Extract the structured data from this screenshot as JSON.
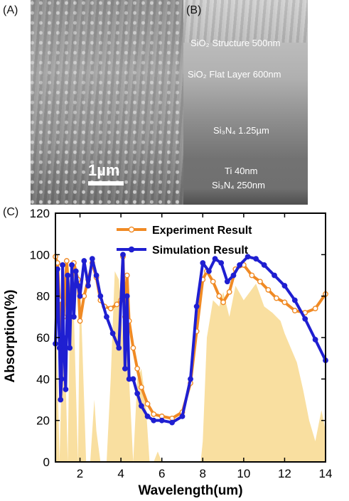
{
  "panels": {
    "a_label": "(A)",
    "b_label": "(B)",
    "c_label": "(C)",
    "scale_label": "1µm",
    "layers": {
      "sio2_structure": "SiO₂ Structure 500nm",
      "sio2_flat": "SiO₂ Flat Layer 600nm",
      "si3n4_thick": "Si₃N₄ 1.25µm",
      "ti": "Ti 40nm",
      "si3n4_thin": "Si₃N₄ 250nm"
    }
  },
  "chart_data": {
    "type": "line",
    "xlabel": "Wavelength(um)",
    "ylabel": "Absorption(%)",
    "xlim": [
      0.8,
      14
    ],
    "ylim": [
      0,
      120
    ],
    "xticks": [
      2,
      4,
      6,
      8,
      10,
      12,
      14
    ],
    "yticks": [
      0,
      20,
      40,
      60,
      80,
      100,
      120
    ],
    "legend_position": "top-center",
    "grid": false,
    "colors": {
      "experiment": "#f08a24",
      "simulation": "#1f1fd1",
      "background_fill": "#f9dfa0"
    },
    "series": [
      {
        "name": "Experiment Result",
        "marker": "open-circle",
        "x": [
          0.8,
          0.9,
          1.0,
          1.1,
          1.2,
          1.35,
          1.5,
          1.7,
          1.9,
          2.0,
          2.2,
          2.4,
          2.6,
          2.8,
          3.0,
          3.2,
          3.5,
          3.8,
          4.0,
          4.1,
          4.2,
          4.3,
          4.4,
          4.6,
          4.8,
          5.0,
          5.3,
          5.6,
          6.0,
          6.5,
          7.0,
          7.4,
          7.7,
          8.0,
          8.2,
          8.5,
          8.8,
          9.0,
          9.3,
          9.6,
          10.0,
          10.4,
          10.8,
          11.2,
          11.6,
          12.0,
          12.5,
          13.0,
          13.5,
          14.0
        ],
        "y": [
          99,
          96,
          78,
          62,
          70,
          97,
          75,
          96,
          88,
          68,
          80,
          88,
          96,
          89,
          78,
          75,
          74,
          76,
          78,
          99,
          70,
          90,
          68,
          55,
          45,
          36,
          28,
          23,
          22,
          21,
          24,
          38,
          63,
          88,
          92,
          87,
          80,
          77,
          82,
          93,
          95,
          90,
          87,
          83,
          79,
          77,
          73,
          72,
          74,
          81
        ]
      },
      {
        "name": "Simulation Result",
        "marker": "filled-circle",
        "x": [
          0.8,
          0.9,
          1.0,
          1.05,
          1.1,
          1.15,
          1.2,
          1.3,
          1.4,
          1.5,
          1.6,
          1.7,
          1.8,
          1.9,
          2.0,
          2.2,
          2.4,
          2.6,
          2.8,
          3.0,
          3.3,
          3.6,
          3.9,
          4.1,
          4.2,
          4.3,
          4.4,
          4.6,
          4.8,
          5.0,
          5.3,
          5.6,
          6.0,
          6.5,
          7.0,
          7.4,
          7.7,
          8.0,
          8.3,
          8.6,
          8.9,
          9.2,
          9.5,
          9.8,
          10.2,
          10.6,
          11.0,
          11.5,
          12.0,
          12.5,
          13.0,
          13.5,
          14.0
        ],
        "y": [
          57,
          93,
          55,
          30,
          40,
          95,
          60,
          35,
          90,
          55,
          95,
          70,
          92,
          85,
          80,
          97,
          85,
          98,
          90,
          80,
          70,
          62,
          55,
          100,
          45,
          80,
          40,
          40,
          33,
          27,
          22,
          20,
          20,
          19,
          22,
          40,
          75,
          96,
          92,
          98,
          96,
          87,
          90,
          95,
          99,
          98,
          95,
          90,
          85,
          78,
          69,
          59,
          49
        ]
      }
    ],
    "area_fill": {
      "description_free": true,
      "x": [
        0.8,
        1.0,
        1.2,
        1.4,
        1.5,
        1.7,
        1.9,
        2.0,
        2.1,
        2.3,
        2.5,
        2.7,
        2.8,
        3.0,
        3.3,
        3.5,
        3.7,
        3.9,
        4.1,
        4.2,
        4.4,
        4.6,
        4.8,
        5.0,
        5.2,
        5.4,
        5.6,
        5.8,
        6.0,
        7.9,
        8.0,
        8.2,
        8.5,
        8.8,
        9.0,
        9.3,
        9.6,
        10.0,
        10.3,
        10.6,
        11.0,
        11.4,
        11.8,
        12.0,
        12.3,
        12.6,
        12.9,
        13.2,
        13.5,
        13.8,
        14.0
      ],
      "y": [
        90,
        0,
        82,
        0,
        70,
        72,
        0,
        88,
        60,
        0,
        0,
        30,
        15,
        0,
        0,
        40,
        92,
        88,
        60,
        80,
        40,
        0,
        40,
        45,
        30,
        0,
        0,
        5,
        0,
        0,
        10,
        60,
        78,
        75,
        82,
        70,
        85,
        78,
        82,
        86,
        75,
        72,
        68,
        62,
        55,
        48,
        35,
        20,
        10,
        25,
        15
      ]
    }
  }
}
